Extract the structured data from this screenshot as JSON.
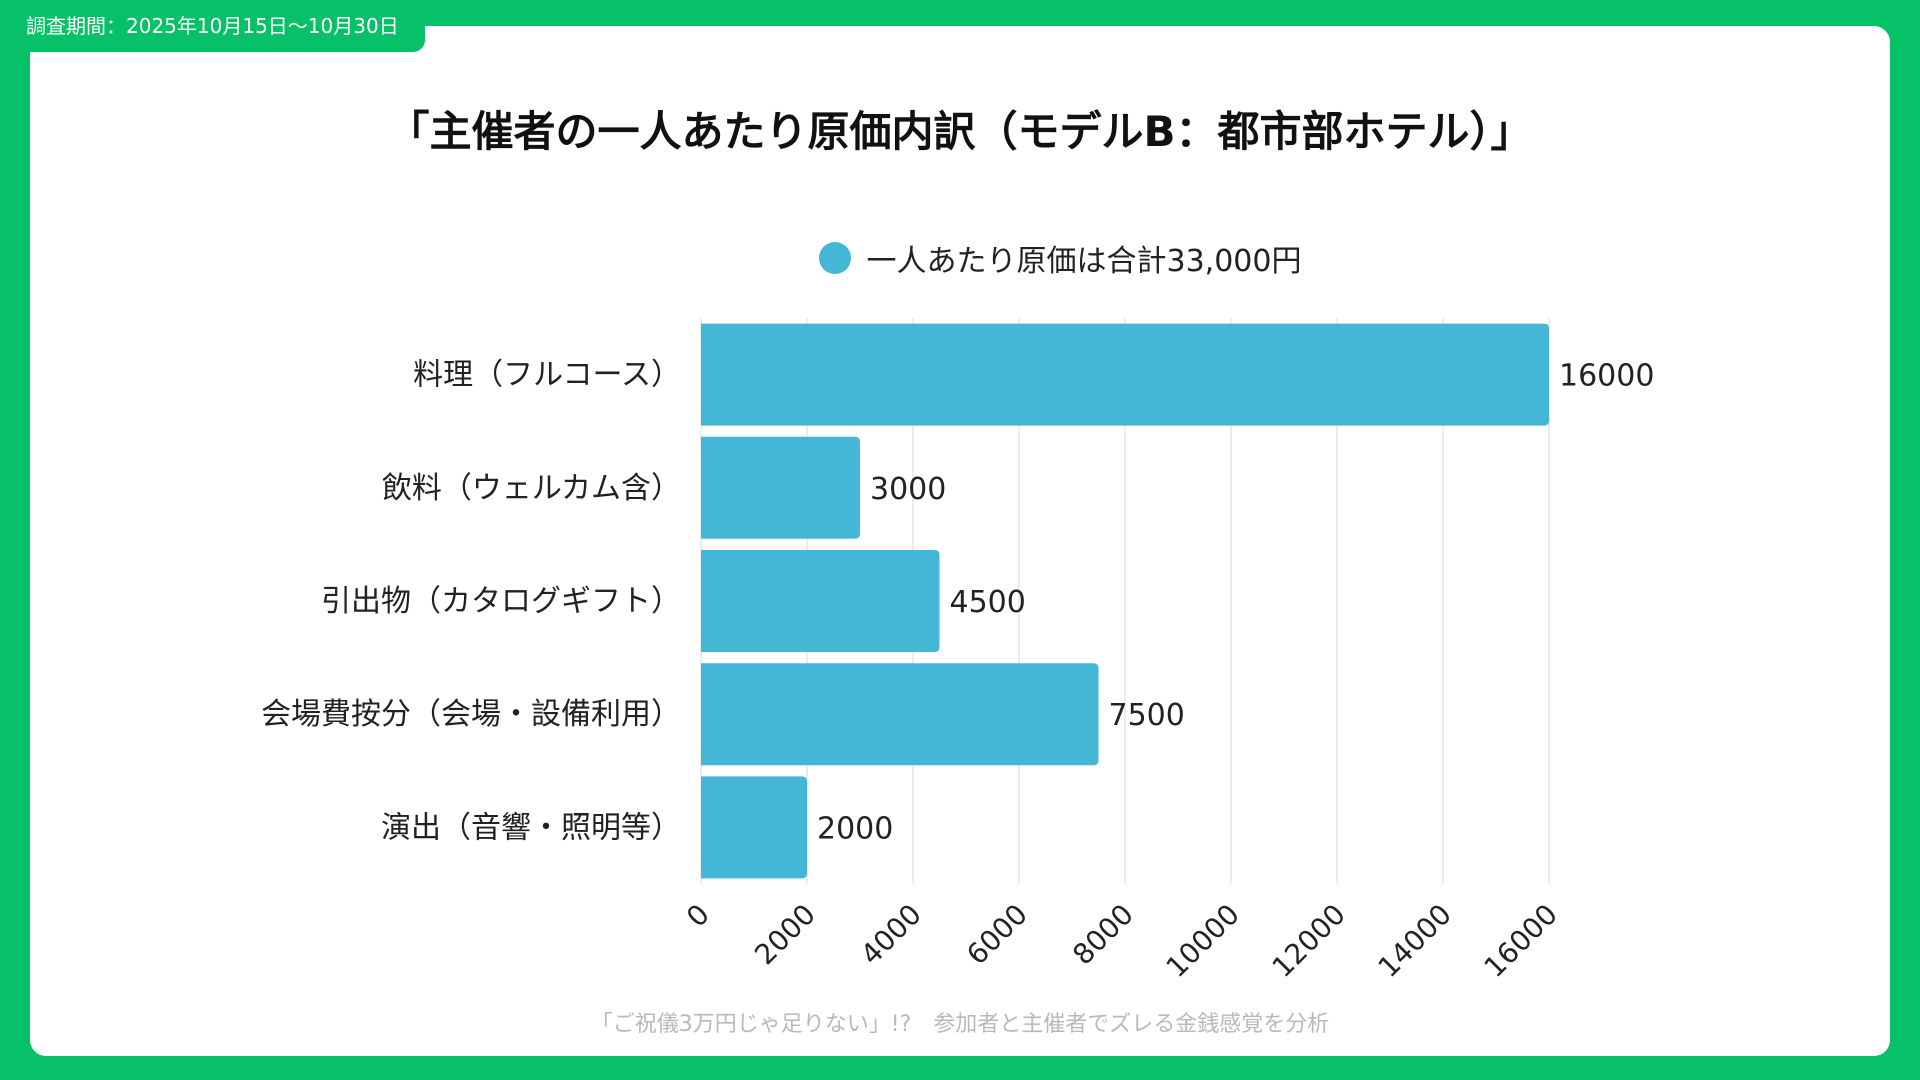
{
  "header": {
    "period": "調査期間：2025年10月15日〜10月30日"
  },
  "title": "「主催者の一人あたり原価内訳（モデルB：都市部ホテル）」",
  "legend": {
    "label": "一人あたり原価は合計33,000円"
  },
  "footer": {
    "source": "「ご祝儀3万円じゃ足りない」!?　参加者と主催者でズレる金銭感覚を分析"
  },
  "colors": {
    "background": "#06c168",
    "bar": "#44b7d6",
    "grid": "#d9d9d9"
  },
  "chart_data": {
    "type": "bar",
    "orientation": "horizontal",
    "title": "「主催者の一人あたり原価内訳（モデルB：都市部ホテル）」",
    "categories": [
      "料理（フルコース）",
      "飲料（ウェルカム含）",
      "引出物（カタログギフト）",
      "会場費按分（会場・設備利用）",
      "演出（音響・照明等）"
    ],
    "series": [
      {
        "name": "一人あたり原価は合計33,000円",
        "values": [
          16000,
          3000,
          4500,
          7500,
          2000
        ]
      }
    ],
    "xlim": [
      0,
      16000
    ],
    "xticks": [
      0,
      2000,
      4000,
      6000,
      8000,
      10000,
      12000,
      14000,
      16000
    ],
    "xlabel": "",
    "ylabel": "",
    "grid": true,
    "legend_position": "top"
  }
}
